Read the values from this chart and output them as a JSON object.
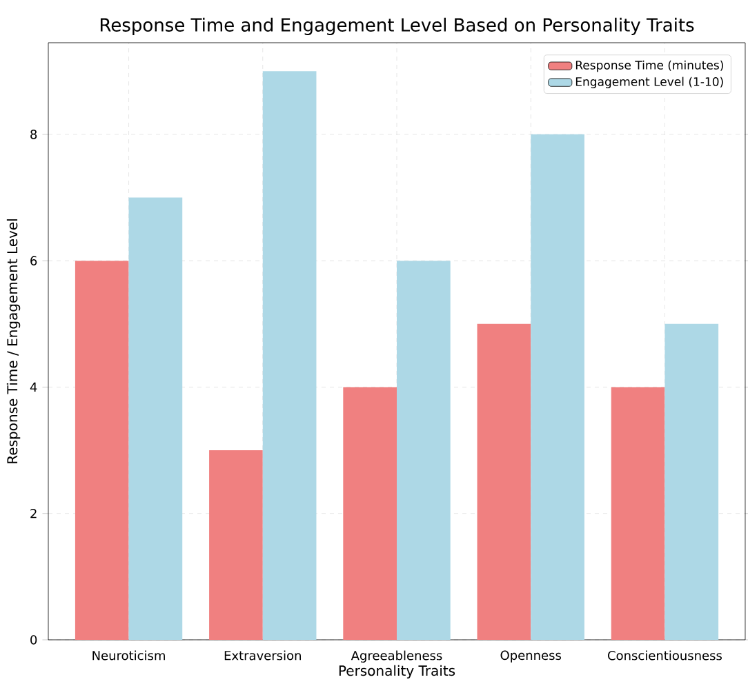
{
  "chart_data": {
    "type": "bar",
    "title": "Response Time and Engagement Level Based on Personality Traits",
    "xlabel": "Personality Traits",
    "ylabel": "Response Time / Engagement Level",
    "categories": [
      "Neuroticism",
      "Extraversion",
      "Agreeableness",
      "Openness",
      "Conscientiousness"
    ],
    "series": [
      {
        "name": "Response Time (minutes)",
        "color": "#f08080",
        "values": [
          6,
          3,
          4,
          5,
          4
        ]
      },
      {
        "name": "Engagement Level (1-10)",
        "color": "#add8e6",
        "values": [
          7,
          9,
          6,
          8,
          5
        ]
      }
    ],
    "ylim": [
      0,
      9.45
    ],
    "yticks": [
      0,
      2,
      4,
      6,
      8
    ],
    "grid": true,
    "legend": "top right"
  }
}
